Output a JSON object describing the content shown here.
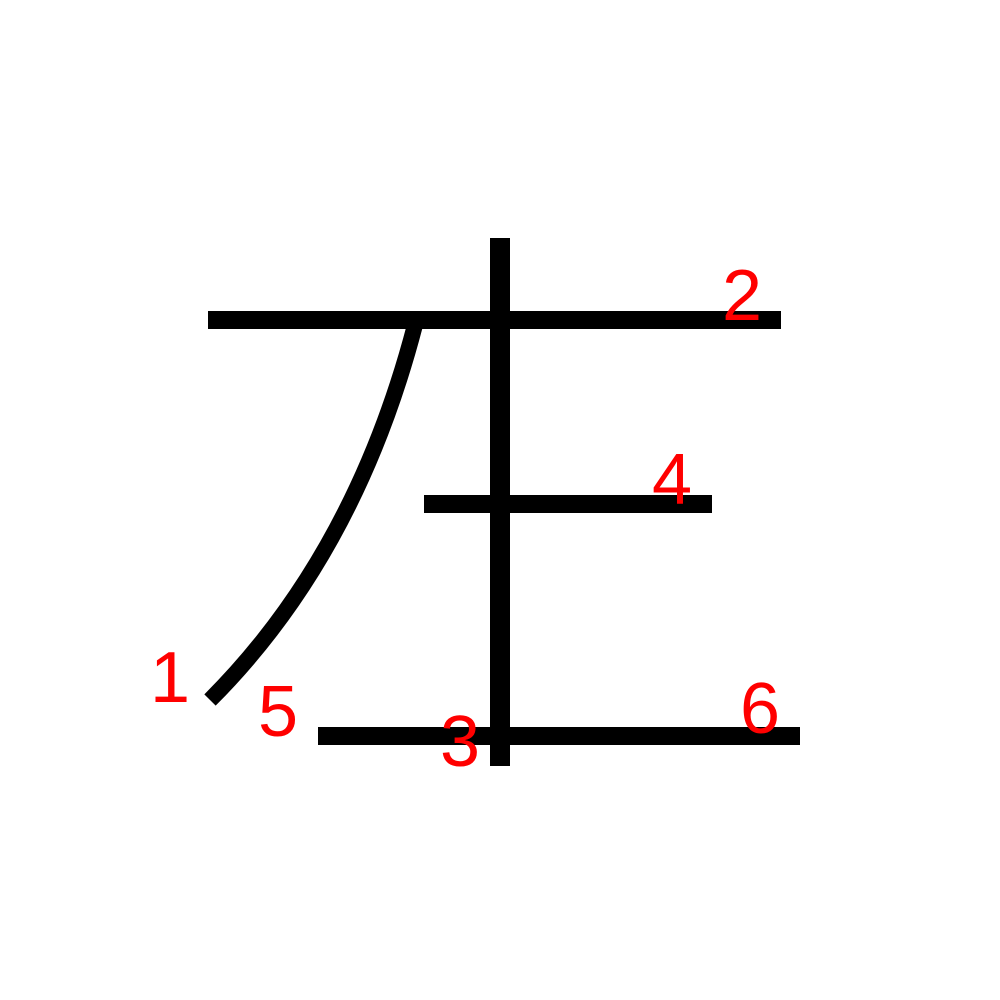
{
  "diagram": {
    "stroke_color": "#000000",
    "number_color": "#ff0000",
    "strokes": [
      {
        "name": "stroke-1-curve",
        "order": "1"
      },
      {
        "name": "stroke-2-top-horizontal",
        "order": "2"
      },
      {
        "name": "stroke-3-vertical",
        "order": "3"
      },
      {
        "name": "stroke-4-middle-horizontal",
        "order": "4"
      },
      {
        "name": "stroke-5-bottom-horizontal",
        "order": "5"
      },
      {
        "name": "stroke-6",
        "order": "6"
      }
    ]
  }
}
